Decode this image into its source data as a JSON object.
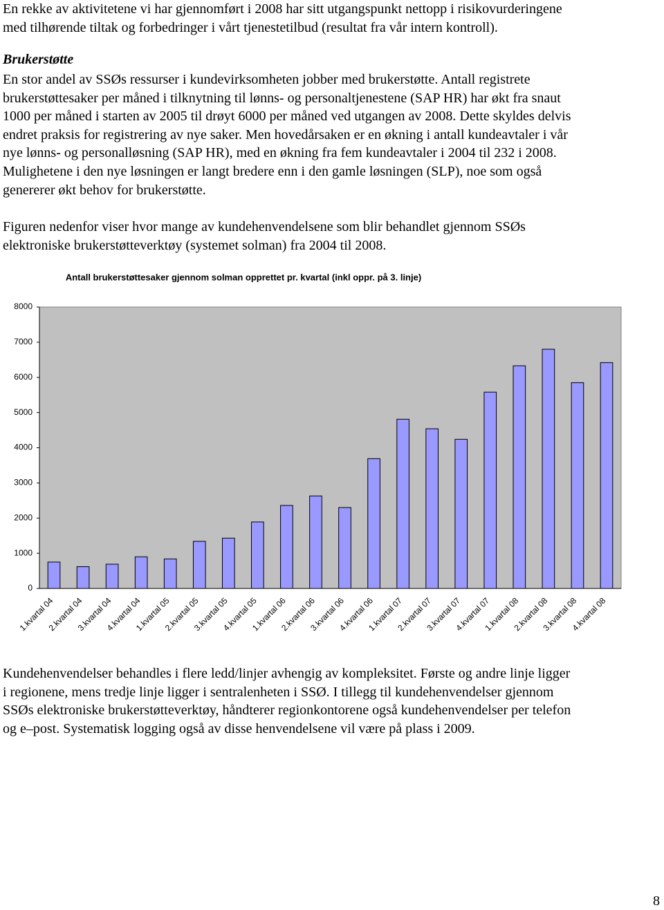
{
  "paragraphs": [
    {
      "lines": [
        "En rekke av aktivitetene vi har gjennomført i 2008 har sitt utgangspunkt nettopp i risikovurderingene",
        "med tilhørende tiltak og forbedringer i vårt tjenestetilbud (resultat fra vår intern kontroll)."
      ]
    },
    {
      "lines": [
        "En stor andel av SSØs ressurser i kundevirksomheten jobber med brukerstøtte. Antall registrete",
        "brukerstøttesaker per måned i tilknytning til lønns- og personaltjenestene (SAP HR) har økt fra snaut",
        "1000 per måned i starten av 2005 til drøyt 6000 per måned ved utgangen av 2008. Dette skyldes delvis",
        "endret praksis for registrering av nye saker. Men hovedårsaken er en økning i antall kundeavtaler i vår",
        "nye lønns- og personalløsning (SAP HR), med en økning fra fem kundeavtaler i 2004 til 232 i 2008.",
        "Mulighetene i den nye løsningen er langt bredere enn i den gamle løsningen (SLP), noe som også",
        "genererer økt behov for brukerstøtte."
      ]
    },
    {
      "lines": [
        "Figuren nedenfor viser hvor mange av kundehenvendelsene som blir behandlet gjennom SSØs",
        "elektroniske brukerstøtteverktøy (systemet solman) fra 2004 til 2008."
      ]
    },
    {
      "lines": [
        "Kundehenvendelser behandles i flere ledd/linjer avhengig av kompleksitet. Første og andre linje ligger",
        "i regionene, mens tredje linje ligger i sentralenheten i SSØ. I tillegg til kundehenvendelser gjennom",
        "SSØs elektroniske brukerstøtteverktøy, håndterer regionkontorene også kundehenvendelser per telefon",
        "og e–post.  Systematisk logging også av disse henvendelsene vil være på plass i 2009."
      ]
    }
  ],
  "heading": "Brukerstøtte",
  "page_number": "8",
  "chart_data": {
    "type": "bar",
    "title": "Antall brukerstøttesaker gjennom solman opprettet pr. kvartal (inkl oppr. på 3. linje)",
    "categories": [
      "1.kvartal 04",
      "2.kvartal 04",
      "3.kvartal 04",
      "4.kvartal 04",
      "1.kvartal 05",
      "2.kvartal 05",
      "3.kvartal 05",
      "4.kvartal 05",
      "1.kvartal 06",
      "2.kvartal 06",
      "3.kvartal 06",
      "4.kvartal 06",
      "1.kvartal 07",
      "2.kvartal 07",
      "3.kvartal 07",
      "4.kvartal 07",
      "1.kvartal 08",
      "2.kvartal 08",
      "3.kvartal 08",
      "4.kvartal 08"
    ],
    "values": [
      750,
      620,
      690,
      900,
      840,
      1340,
      1430,
      1890,
      2360,
      2630,
      2300,
      3690,
      4810,
      4540,
      4240,
      5580,
      6330,
      6800,
      5850,
      6420
    ],
    "color": "#9999ff",
    "ylim": [
      0,
      8000
    ],
    "yticks": [
      0,
      1000,
      2000,
      3000,
      4000,
      5000,
      6000,
      7000,
      8000
    ],
    "grid": false
  }
}
